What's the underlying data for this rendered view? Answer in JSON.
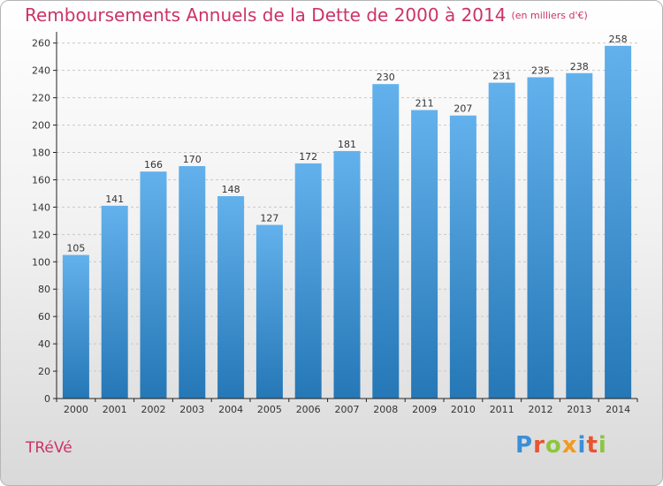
{
  "header": {
    "title": "Remboursements Annuels de la Dette de 2000 à 2014",
    "unit": "(en milliers d'€)"
  },
  "footer": {
    "commune": "TRéVé",
    "logo_text": "Proxiti"
  },
  "colors": {
    "title": "#cc3366",
    "bar_light": "#63b1ec",
    "bar_dark": "#2577b6",
    "logo": [
      "#3a8fd8",
      "#e8542f",
      "#8cc63f",
      "#f29a1f",
      "#3a8fd8",
      "#e8542f",
      "#8cc63f"
    ]
  },
  "chart_data": {
    "type": "bar",
    "title": "Remboursements Annuels de la Dette de 2000 à 2014",
    "categories": [
      "2000",
      "2001",
      "2002",
      "2003",
      "2004",
      "2005",
      "2006",
      "2007",
      "2008",
      "2009",
      "2010",
      "2011",
      "2012",
      "2013",
      "2014"
    ],
    "values": [
      105,
      141,
      166,
      170,
      148,
      127,
      172,
      181,
      230,
      211,
      207,
      231,
      235,
      238,
      258
    ],
    "yticks": [
      "0",
      "20",
      "40",
      "60",
      "80",
      "100",
      "120",
      "140",
      "160",
      "180",
      "200",
      "220",
      "240",
      "260"
    ],
    "ylim": [
      0,
      265
    ],
    "grid": true,
    "xlabel": "",
    "ylabel": ""
  }
}
